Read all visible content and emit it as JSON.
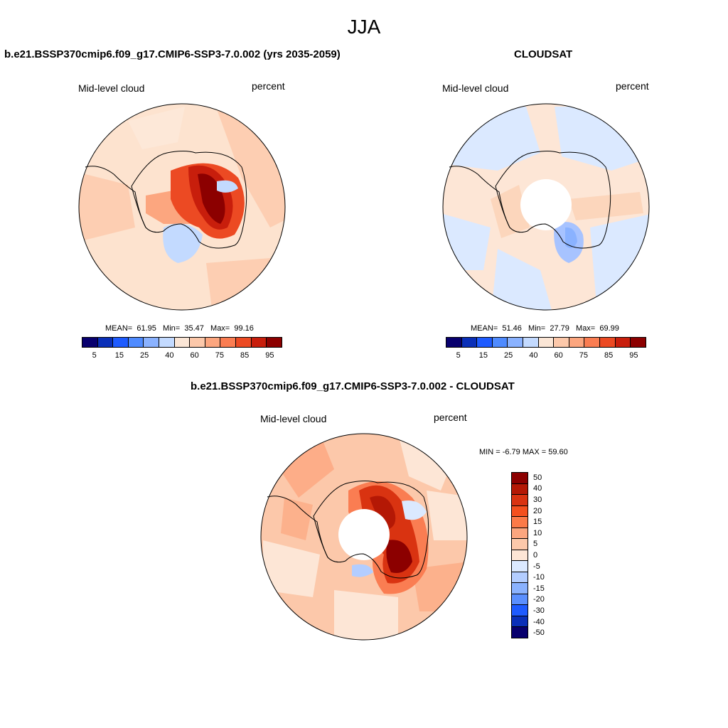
{
  "title": "JJA",
  "colors": {
    "abs_scale": [
      "#08006e",
      "#0a2fb8",
      "#1e5bff",
      "#4f8bff",
      "#8ab2ff",
      "#c3daff",
      "#fbe6d6",
      "#fcc8aa",
      "#fca67f",
      "#fa7d52",
      "#ec4a23",
      "#c81e0c",
      "#8c0000"
    ],
    "diff_scale": [
      "#8c0000",
      "#b41805",
      "#d93311",
      "#f4501e",
      "#fb7a48",
      "#fca67f",
      "#fcc8aa",
      "#fde6d6",
      "#dbe9ff",
      "#b3cdff",
      "#8ab2ff",
      "#5a8fff",
      "#1e5bff",
      "#0a2fb8",
      "#08006e"
    ]
  },
  "panel_left": {
    "title": "b.e21.BSSP370cmip6.f09_g17.CMIP6-SSP3-7.0.002 (yrs 2035-2059)",
    "left_label": "Mid-level cloud",
    "right_label": "percent",
    "mean_label": "MEAN=",
    "mean": "61.95",
    "min_label": "Min=",
    "min": "35.47",
    "max_label": "Max=",
    "max": "99.16",
    "ticks": [
      "5",
      "15",
      "25",
      "40",
      "60",
      "75",
      "85",
      "95"
    ]
  },
  "panel_right": {
    "title": "CLOUDSAT",
    "left_label": "Mid-level cloud",
    "right_label": "percent",
    "mean_label": "MEAN=",
    "mean": "51.46",
    "min_label": "Min=",
    "min": "27.79",
    "max_label": "Max=",
    "max": "69.99",
    "ticks": [
      "5",
      "15",
      "25",
      "40",
      "60",
      "75",
      "85",
      "95"
    ]
  },
  "panel_diff": {
    "title": "b.e21.BSSP370cmip6.f09_g17.CMIP6-SSP3-7.0.002 - CLOUDSAT",
    "left_label": "Mid-level cloud",
    "right_label": "percent",
    "minmax_text": "MIN =  -6.79 MAX =  59.60",
    "ticks": [
      "50",
      "40",
      "30",
      "20",
      "15",
      "10",
      "5",
      "0",
      "-5",
      "-10",
      "-15",
      "-20",
      "-30",
      "-40",
      "-50"
    ]
  }
}
